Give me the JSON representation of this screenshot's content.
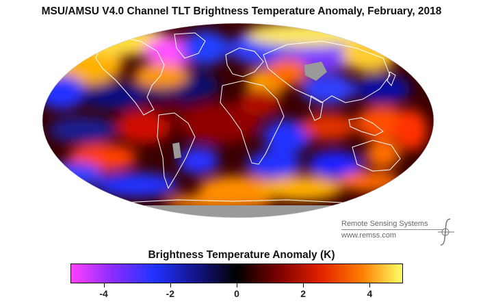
{
  "title": "MSU/AMSU V4.0 Channel TLT Brightness Temperature Anomaly, February, 2018",
  "credit": {
    "name": "Remote Sensing Systems",
    "url": "www.remss.com"
  },
  "colorbar": {
    "title": "Brightness Temperature Anomaly (K)",
    "min": -5,
    "max": 5,
    "ticks": [
      {
        "value": -4,
        "label": "-4"
      },
      {
        "value": -2,
        "label": "-2"
      },
      {
        "value": 0,
        "label": "0"
      },
      {
        "value": 2,
        "label": "2"
      },
      {
        "value": 4,
        "label": "4"
      }
    ],
    "stops": [
      "#ff40ff",
      "#8a2cff",
      "#2033ff",
      "#14148a",
      "#000000",
      "#7a0000",
      "#e02000",
      "#ff7a00",
      "#ffff66"
    ]
  },
  "map": {
    "projection": "Mollweide",
    "missing_color": "#9a9a9a",
    "coast_color": "#ffffff"
  }
}
